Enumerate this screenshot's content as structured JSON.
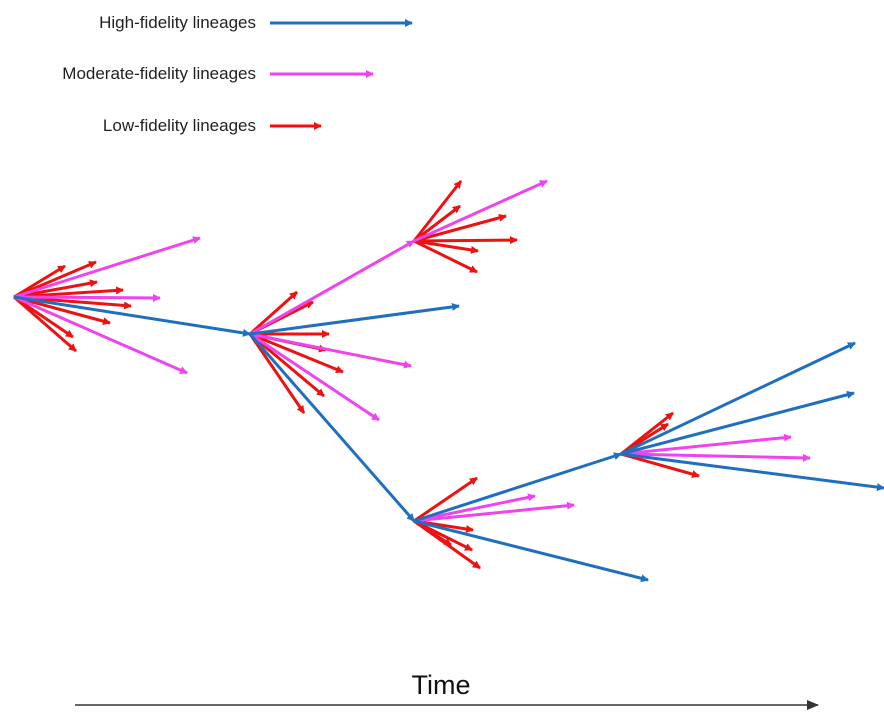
{
  "legend": [
    {
      "label": "High-fidelity lineages",
      "color": "#1f6fbf",
      "kind": "high"
    },
    {
      "label": "Moderate-fidelity lineages",
      "color": "#ee44ee",
      "kind": "moderate"
    },
    {
      "label": "Low-fidelity lineages",
      "color": "#ee1111",
      "kind": "low"
    }
  ],
  "axis": {
    "label": "Time",
    "color": "#333333"
  },
  "colors": {
    "high": "#1f6fbf",
    "moderate": "#ee44ee",
    "low": "#ee1111"
  },
  "lineages": [
    {
      "id": "root",
      "branches": [
        {
          "kind": "moderate",
          "to": "m1"
        },
        {
          "kind": "moderate",
          "to": "m2"
        },
        {
          "kind": "moderate",
          "to": "m3"
        },
        {
          "kind": "high",
          "to": "node-b"
        },
        {
          "kind": "low",
          "to": "l1"
        },
        {
          "kind": "low",
          "to": "l2"
        },
        {
          "kind": "low",
          "to": "l3"
        },
        {
          "kind": "low",
          "to": "l4"
        },
        {
          "kind": "low",
          "to": "l5"
        },
        {
          "kind": "low",
          "to": "l6"
        },
        {
          "kind": "low",
          "to": "l7"
        },
        {
          "kind": "low",
          "to": "l8"
        }
      ]
    },
    {
      "id": "node-b",
      "branches": [
        {
          "kind": "moderate",
          "to": "node-c"
        },
        {
          "kind": "high",
          "to": "h1"
        },
        {
          "kind": "high",
          "to": "node-d"
        },
        {
          "kind": "moderate",
          "to": "m4"
        },
        {
          "kind": "moderate",
          "to": "m5"
        },
        {
          "kind": "low",
          "to": "l9"
        },
        {
          "kind": "low",
          "to": "l10"
        },
        {
          "kind": "low",
          "to": "l11"
        },
        {
          "kind": "low",
          "to": "l12"
        },
        {
          "kind": "low",
          "to": "l13"
        },
        {
          "kind": "low",
          "to": "l14"
        },
        {
          "kind": "low",
          "to": "l15"
        }
      ]
    },
    {
      "id": "node-c",
      "branches": [
        {
          "kind": "moderate",
          "to": "m6"
        },
        {
          "kind": "low",
          "to": "l16"
        },
        {
          "kind": "low",
          "to": "l17"
        },
        {
          "kind": "low",
          "to": "l18"
        },
        {
          "kind": "low",
          "to": "l19"
        },
        {
          "kind": "low",
          "to": "l20"
        },
        {
          "kind": "low",
          "to": "l21"
        }
      ]
    },
    {
      "id": "node-d",
      "branches": [
        {
          "kind": "high",
          "to": "node-e"
        },
        {
          "kind": "high",
          "to": "h2"
        },
        {
          "kind": "moderate",
          "to": "m7"
        },
        {
          "kind": "moderate",
          "to": "m8"
        },
        {
          "kind": "low",
          "to": "l22"
        },
        {
          "kind": "low",
          "to": "l23"
        },
        {
          "kind": "low",
          "to": "l24"
        },
        {
          "kind": "low",
          "to": "l25"
        },
        {
          "kind": "low",
          "to": "l26"
        }
      ]
    },
    {
      "id": "node-e",
      "branches": [
        {
          "kind": "high",
          "to": "h3"
        },
        {
          "kind": "high",
          "to": "h4"
        },
        {
          "kind": "high",
          "to": "h5"
        },
        {
          "kind": "moderate",
          "to": "m9"
        },
        {
          "kind": "moderate",
          "to": "m10"
        },
        {
          "kind": "low",
          "to": "l27"
        },
        {
          "kind": "low",
          "to": "l28"
        },
        {
          "kind": "low",
          "to": "l29"
        }
      ]
    }
  ]
}
